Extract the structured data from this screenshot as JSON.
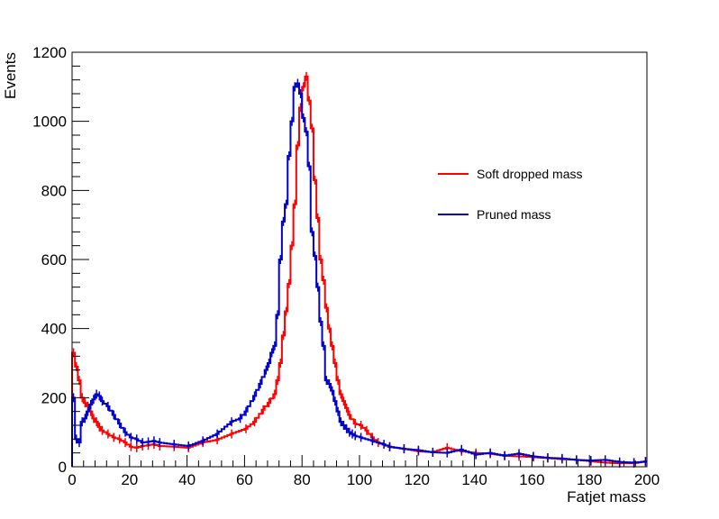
{
  "chart_data": {
    "type": "histogram-step",
    "title": "",
    "xlabel": "Fatjet mass",
    "ylabel": "Events",
    "xlim": [
      0,
      200
    ],
    "ylim": [
      0,
      1200
    ],
    "x_ticks": [
      "0",
      "20",
      "40",
      "60",
      "80",
      "100",
      "120",
      "140",
      "160",
      "180",
      "200"
    ],
    "y_ticks": [
      "0",
      "200",
      "400",
      "600",
      "800",
      "1000",
      "1200"
    ],
    "bin_width": 1,
    "legend_position": "right",
    "series": [
      {
        "name": "Soft dropped mass",
        "color": "#ff0000",
        "x": [
          0,
          1,
          2,
          3,
          4,
          5,
          6,
          7,
          8,
          9,
          10,
          12,
          14,
          16,
          18,
          20,
          22,
          24,
          26,
          28,
          30,
          35,
          40,
          45,
          50,
          55,
          60,
          63,
          66,
          68,
          70,
          71,
          72,
          73,
          74,
          75,
          76,
          77,
          78,
          79,
          80,
          81,
          82,
          83,
          84,
          85,
          86,
          87,
          88,
          89,
          90,
          91,
          92,
          93,
          94,
          95,
          96,
          98,
          100,
          102,
          104,
          106,
          110,
          115,
          120,
          125,
          130,
          135,
          140,
          145,
          150,
          155,
          160,
          165,
          170,
          175,
          180,
          185,
          190,
          195,
          199
        ],
        "values": [
          330,
          290,
          250,
          200,
          185,
          175,
          160,
          140,
          130,
          115,
          105,
          95,
          85,
          80,
          70,
          58,
          55,
          60,
          62,
          65,
          60,
          58,
          55,
          70,
          78,
          95,
          110,
          130,
          165,
          185,
          210,
          250,
          300,
          380,
          450,
          530,
          640,
          760,
          930,
          1040,
          1100,
          1130,
          1060,
          980,
          830,
          720,
          600,
          540,
          460,
          400,
          350,
          300,
          250,
          210,
          190,
          170,
          150,
          125,
          120,
          105,
          85,
          70,
          58,
          52,
          45,
          42,
          55,
          45,
          40,
          38,
          32,
          30,
          28,
          25,
          22,
          20,
          16,
          12,
          10,
          10,
          15
        ]
      },
      {
        "name": "Pruned mass",
        "color": "#0000cc",
        "x": [
          0,
          1,
          2,
          3,
          4,
          5,
          6,
          7,
          8,
          9,
          10,
          12,
          14,
          16,
          18,
          20,
          22,
          24,
          26,
          28,
          30,
          35,
          40,
          45,
          50,
          55,
          58,
          60,
          63,
          65,
          67,
          68,
          69,
          70,
          71,
          72,
          73,
          74,
          75,
          76,
          77,
          78,
          79,
          80,
          81,
          82,
          83,
          84,
          85,
          86,
          87,
          88,
          89,
          90,
          91,
          92,
          93,
          94,
          95,
          96,
          97,
          98,
          100,
          104,
          108,
          110,
          115,
          120,
          125,
          130,
          135,
          140,
          145,
          150,
          155,
          160,
          165,
          170,
          175,
          180,
          185,
          190,
          195,
          199
        ],
        "values": [
          200,
          80,
          70,
          130,
          140,
          160,
          180,
          195,
          210,
          205,
          190,
          175,
          150,
          125,
          100,
          85,
          80,
          70,
          72,
          75,
          70,
          65,
          60,
          75,
          95,
          130,
          140,
          160,
          205,
          240,
          280,
          300,
          330,
          350,
          440,
          600,
          710,
          760,
          900,
          1000,
          1100,
          1110,
          1080,
          1010,
          970,
          870,
          680,
          610,
          520,
          420,
          350,
          250,
          240,
          220,
          190,
          160,
          130,
          120,
          110,
          100,
          95,
          90,
          85,
          75,
          65,
          58,
          52,
          48,
          42,
          40,
          50,
          35,
          40,
          32,
          38,
          30,
          26,
          24,
          20,
          18,
          20,
          14,
          12,
          15
        ]
      }
    ]
  }
}
